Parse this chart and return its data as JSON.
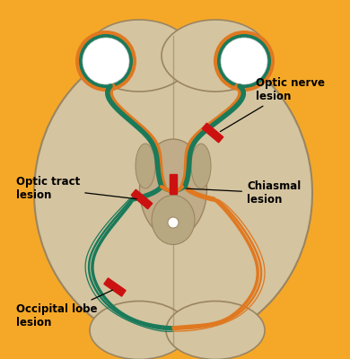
{
  "background_color": "#F5A828",
  "brain_color": "#D4C4A0",
  "brain_dark_color": "#C0AC88",
  "brain_outline_color": "#9B8560",
  "brain_center_color": "#B8A882",
  "teal_color": "#1A7A5A",
  "orange_color": "#E07820",
  "red_color": "#CC1111",
  "white_color": "#FFFFFF",
  "text_color": "#000000",
  "labels": {
    "optic_nerve": "Optic nerve\nlesion",
    "optic_tract": "Optic tract\nlesion",
    "chiasmal": "Chiasmal\nlesion",
    "occipital": "Occipital lobe\nlesion"
  }
}
